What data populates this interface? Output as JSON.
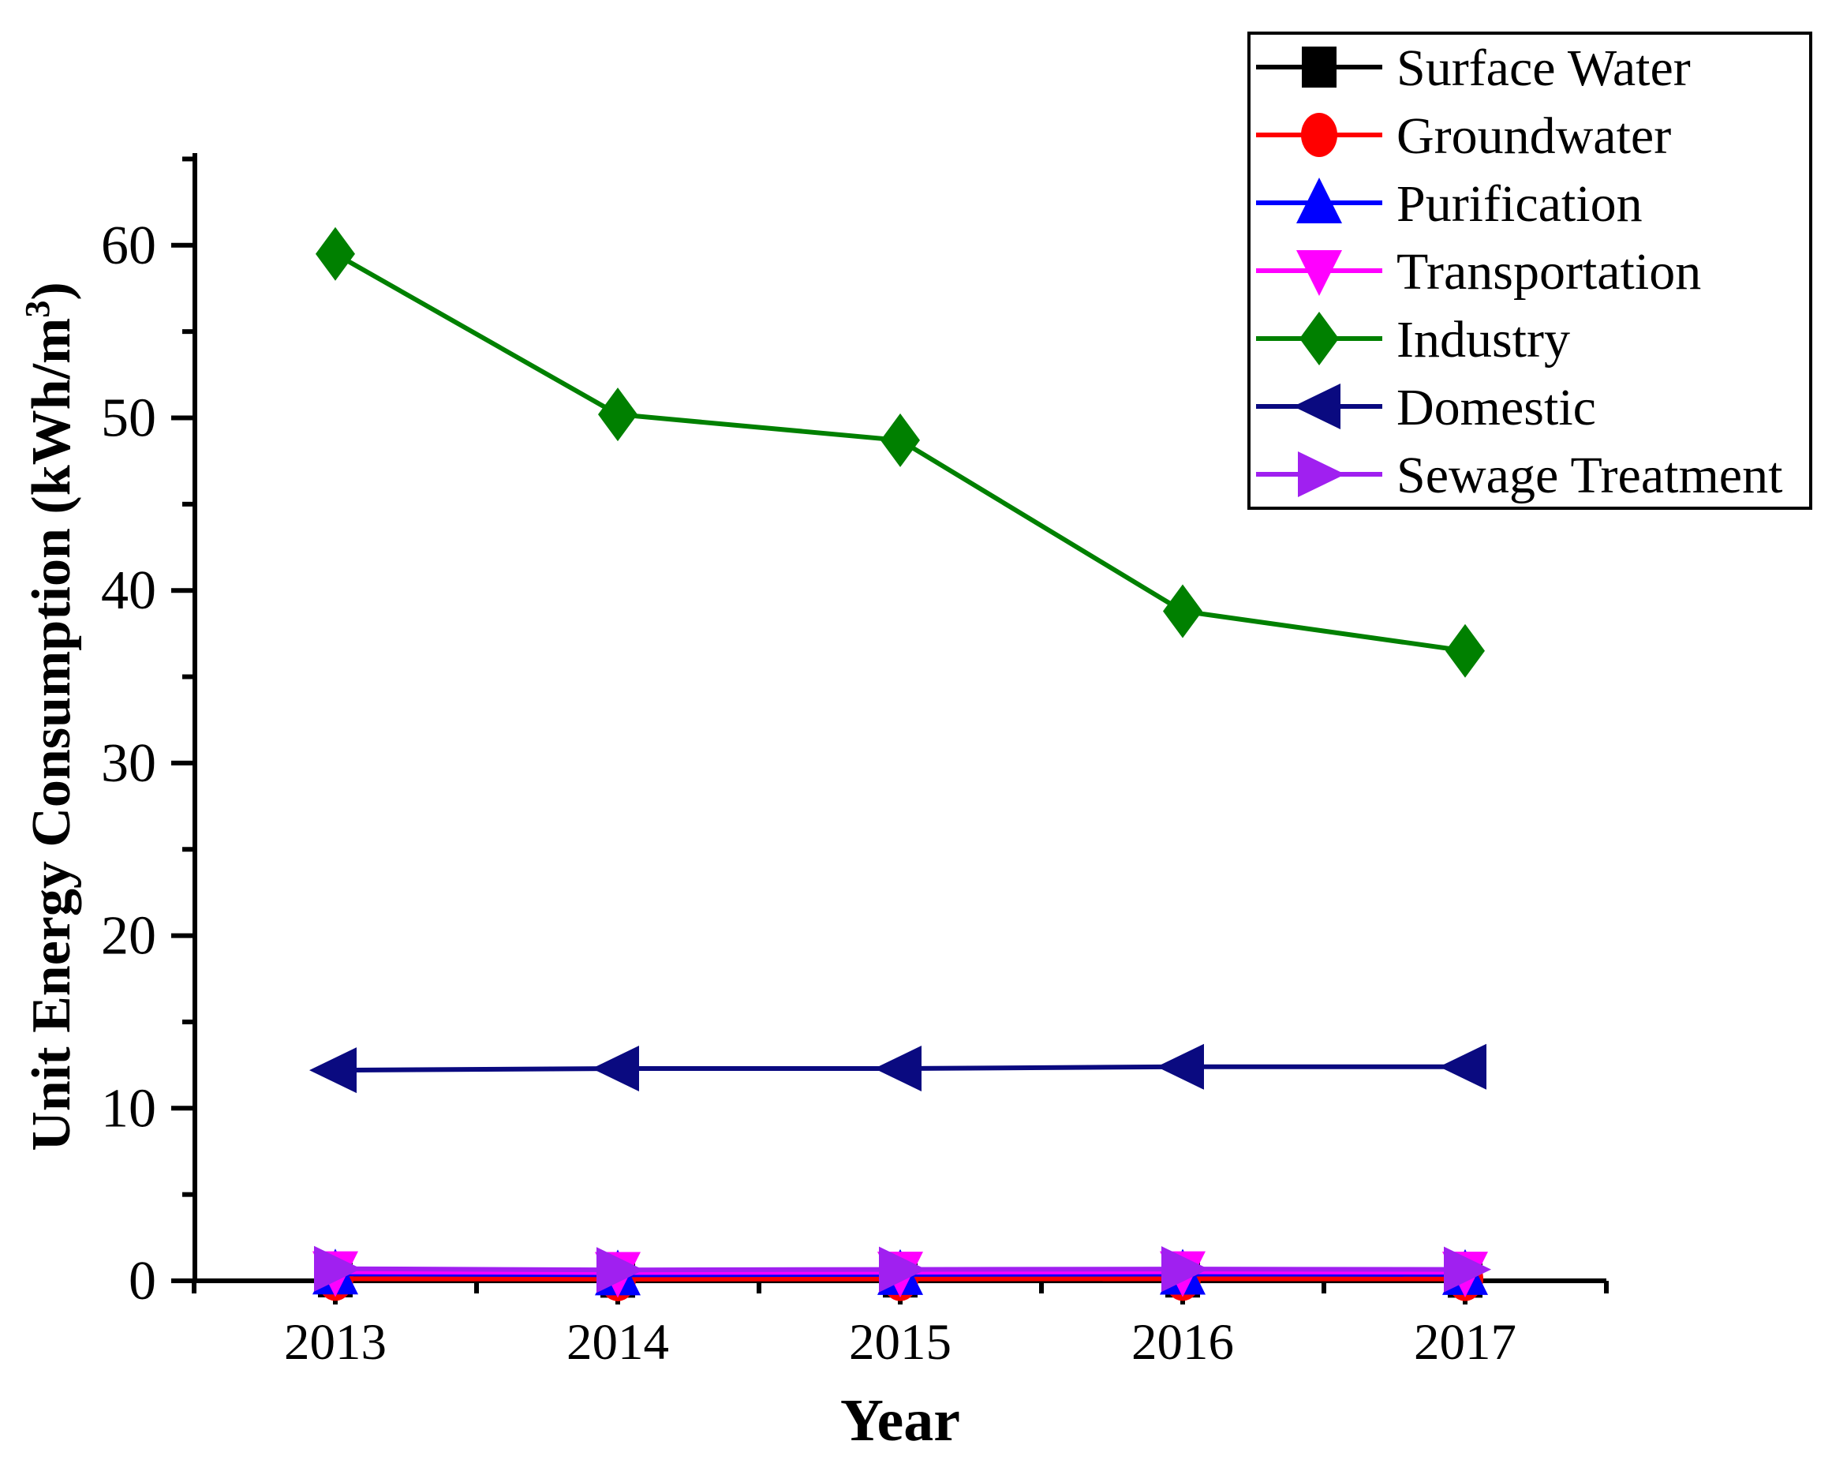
{
  "chart_data": {
    "type": "line",
    "title": "",
    "xlabel": "Year",
    "ylabel": "Unit Energy Consumption (kWh/m³)",
    "ylabel_parts": {
      "base": "Unit Energy Consumption (kWh/m",
      "sup": "3",
      "close": ")"
    },
    "x": [
      2013,
      2014,
      2015,
      2016,
      2017
    ],
    "x_tick_labels": [
      "2013",
      "2014",
      "2015",
      "2016",
      "2017"
    ],
    "y_tick_labels": [
      "0",
      "10",
      "20",
      "30",
      "40",
      "50",
      "60"
    ],
    "y_major_ticks": [
      0,
      10,
      20,
      30,
      40,
      50,
      60
    ],
    "y_minor_ticks": [
      5,
      15,
      25,
      35,
      45,
      55,
      65
    ],
    "x_minor_ticks": [
      2012.5,
      2013.5,
      2014.5,
      2015.5,
      2016.5,
      2017.5
    ],
    "xlim": [
      2012.5,
      2017.5
    ],
    "ylim": [
      0,
      65.3
    ],
    "grid": false,
    "legend_position": "top-right",
    "axis_color": "#000000",
    "series": [
      {
        "name": "Surface Water",
        "color": "#000000",
        "marker": "square",
        "values": [
          0.23,
          0.21,
          0.22,
          0.22,
          0.21
        ]
      },
      {
        "name": "Groundwater",
        "color": "#FF0000",
        "marker": "circle",
        "values": [
          0.12,
          0.1,
          0.11,
          0.12,
          0.11
        ]
      },
      {
        "name": "Purification",
        "color": "#0000FF",
        "marker": "triangle-up",
        "values": [
          0.4,
          0.35,
          0.37,
          0.39,
          0.37
        ]
      },
      {
        "name": "Transportation",
        "color": "#FF00FF",
        "marker": "triangle-down",
        "values": [
          0.52,
          0.48,
          0.5,
          0.52,
          0.5
        ]
      },
      {
        "name": "Industry",
        "color": "#008000",
        "marker": "diamond",
        "values": [
          59.5,
          50.2,
          48.7,
          38.8,
          36.5
        ]
      },
      {
        "name": "Domestic",
        "color": "#0A0A80",
        "marker": "triangle-left",
        "values": [
          12.2,
          12.3,
          12.3,
          12.4,
          12.4
        ]
      },
      {
        "name": "Sewage Treatment",
        "color": "#A020F0",
        "marker": "triangle-right",
        "values": [
          0.7,
          0.63,
          0.66,
          0.68,
          0.66
        ]
      }
    ]
  }
}
